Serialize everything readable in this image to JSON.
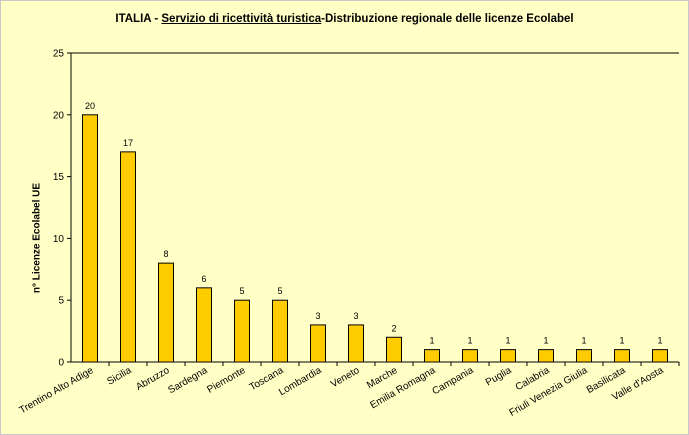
{
  "chart_data": {
    "type": "bar",
    "title_parts": [
      "ITALIA - ",
      "Servizio di ricettività turistica",
      "-Distribuzione regionale delle licenze Ecolabel"
    ],
    "ylabel": "n° Licenze  Ecolabel  UE",
    "xlabel": "",
    "ylim": [
      0,
      25
    ],
    "yticks": [
      "0",
      "5",
      "10",
      "15",
      "20",
      "25"
    ],
    "grid": false,
    "categories": [
      "Trentino Alto Adige",
      "Sicilia",
      "Abruzzo",
      "Sardegna",
      "Piemonte",
      "Toscana",
      "Lombardia",
      "Veneto",
      "Marche",
      "Emilia Romagna",
      "Campania",
      "Puglia",
      "Calabria",
      "Friuli Venezia Giulia",
      "Basilicata",
      "Valle d'Aosta"
    ],
    "values": [
      20,
      17,
      8,
      6,
      5,
      5,
      3,
      3,
      2,
      1,
      1,
      1,
      1,
      1,
      1,
      1
    ],
    "bar_color": "#ffcc00",
    "bar_edge_color": "#000000",
    "background_color": "#ffffc6"
  }
}
